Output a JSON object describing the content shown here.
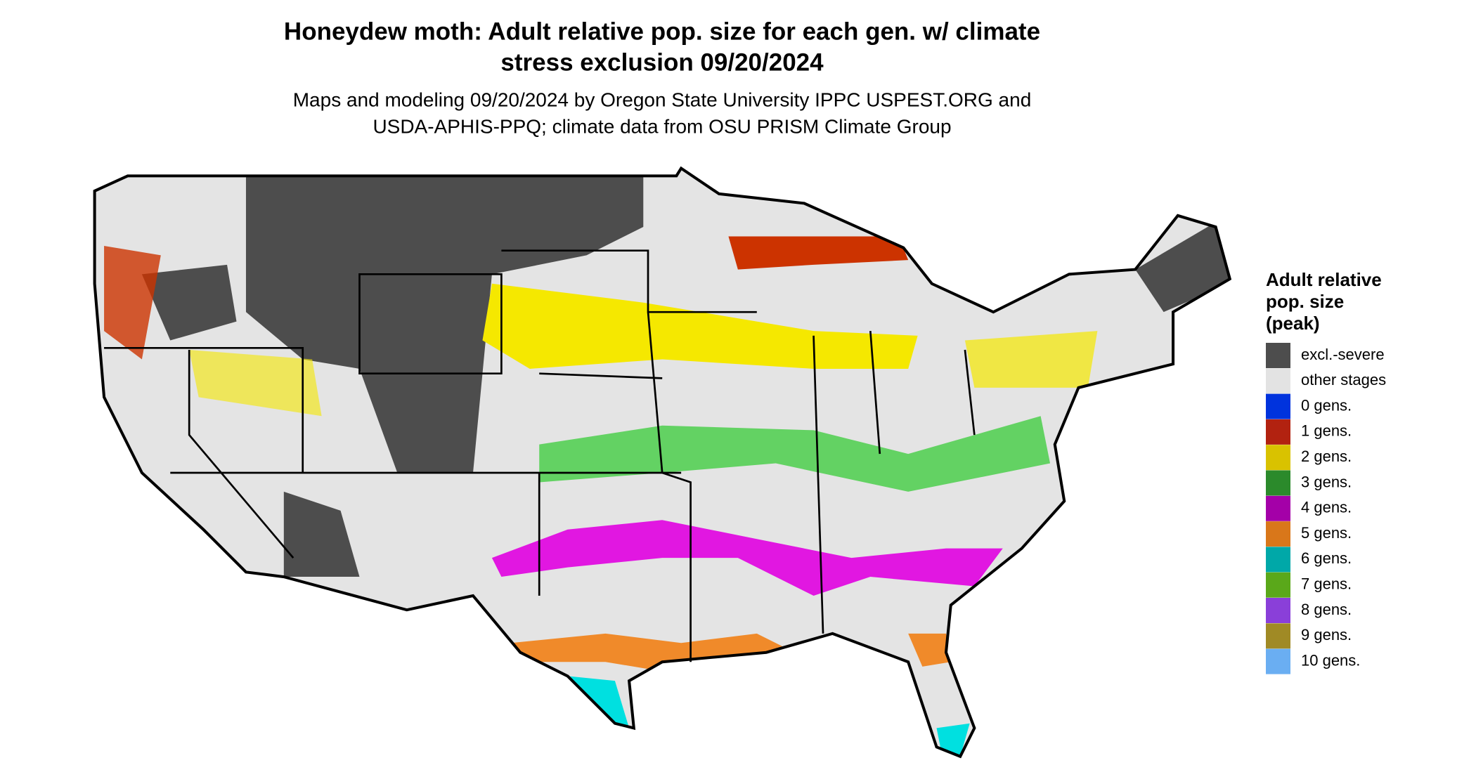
{
  "header": {
    "title_lines": [
      "Honeydew moth: Adult relative pop. size for each gen. w/ climate",
      "stress exclusion 09/20/2024"
    ],
    "subtitle_lines": [
      "Maps and modeling 09/20/2024 by Oregon State University IPPC USPEST.ORG and",
      "USDA-APHIS-PPQ; climate data from OSU PRISM Climate Group"
    ]
  },
  "legend": {
    "title_lines": [
      "Adult relative",
      "pop. size",
      "(peak)"
    ],
    "items": [
      {
        "label": "excl.-severe",
        "color": "#4d4d4d"
      },
      {
        "label": "other stages",
        "color": "#e3e3e3"
      },
      {
        "label": "0 gens.",
        "color": "#0033dd"
      },
      {
        "label": "1 gens.",
        "color": "#b22210"
      },
      {
        "label": "2 gens.",
        "color": "#d9c200"
      },
      {
        "label": "3 gens.",
        "color": "#2b8a2b"
      },
      {
        "label": "4 gens.",
        "color": "#a400a8"
      },
      {
        "label": "5 gens.",
        "color": "#d9771a"
      },
      {
        "label": "6 gens.",
        "color": "#00a8a8"
      },
      {
        "label": "7 gens.",
        "color": "#5aa81a"
      },
      {
        "label": "8 gens.",
        "color": "#8a3fd9"
      },
      {
        "label": "9 gens.",
        "color": "#a08a25"
      },
      {
        "label": "10 gens.",
        "color": "#6aaef2"
      }
    ]
  }
}
